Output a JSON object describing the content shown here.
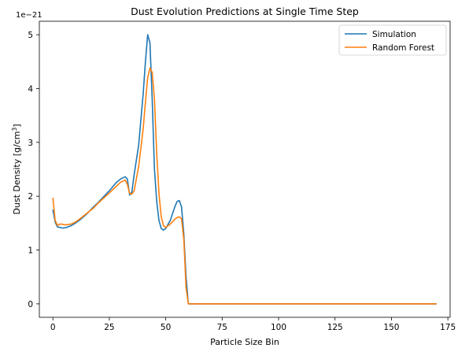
{
  "chart_data": {
    "type": "line",
    "title": "Dust Evolution Predictions at Single Time Step",
    "xlabel": "Particle Size Bin",
    "ylabel_main": "Dust Density [g/cm",
    "ylabel_sup": "3",
    "ylabel_close": "]",
    "y_multiplier": "1e−21",
    "xlim": [
      -6,
      176
    ],
    "ylim": [
      -0.25,
      5.25
    ],
    "grid": false,
    "legend_position": "top-right",
    "x_ticks": [
      0,
      25,
      50,
      75,
      100,
      125,
      150,
      175
    ],
    "x_tick_labels": [
      "0",
      "25",
      "50",
      "75",
      "100",
      "125",
      "150",
      "175"
    ],
    "y_ticks": [
      0,
      1,
      2,
      3,
      4,
      5
    ],
    "y_tick_labels": [
      "0",
      "1",
      "2",
      "3",
      "4",
      "5"
    ],
    "series": [
      {
        "name": "Simulation",
        "color": "#1f77b4",
        "x": [
          0,
          1,
          2,
          3,
          4,
          5,
          6,
          8,
          10,
          12,
          15,
          18,
          20,
          25,
          28,
          30,
          32,
          33,
          34,
          35,
          36,
          38,
          40,
          41,
          42,
          43,
          44,
          45,
          46,
          47,
          48,
          49,
          50,
          52,
          54,
          55,
          56,
          57,
          58,
          59,
          60,
          70,
          90,
          110,
          130,
          150,
          170
        ],
        "values": [
          1.75,
          1.52,
          1.43,
          1.42,
          1.41,
          1.41,
          1.42,
          1.45,
          1.5,
          1.56,
          1.67,
          1.8,
          1.88,
          2.1,
          2.25,
          2.32,
          2.36,
          2.32,
          2.02,
          2.08,
          2.4,
          2.95,
          3.9,
          4.5,
          5.0,
          4.85,
          3.8,
          2.5,
          1.9,
          1.55,
          1.4,
          1.37,
          1.4,
          1.55,
          1.8,
          1.9,
          1.92,
          1.8,
          1.3,
          0.5,
          0.0,
          0.0,
          0.0,
          0.0,
          0.0,
          0.0,
          0.0
        ]
      },
      {
        "name": "Random Forest",
        "color": "#ff7f0e",
        "x": [
          0,
          1,
          2,
          3,
          4,
          5,
          6,
          8,
          10,
          12,
          15,
          18,
          20,
          25,
          28,
          30,
          32,
          33,
          34,
          35,
          36,
          38,
          40,
          41,
          42,
          43,
          44,
          45,
          46,
          47,
          48,
          49,
          50,
          52,
          54,
          55,
          56,
          57,
          58,
          59,
          60,
          70,
          90,
          110,
          130,
          150,
          170
        ],
        "values": [
          1.97,
          1.55,
          1.46,
          1.48,
          1.48,
          1.47,
          1.47,
          1.48,
          1.52,
          1.58,
          1.68,
          1.78,
          1.87,
          2.06,
          2.18,
          2.26,
          2.3,
          2.22,
          2.05,
          2.04,
          2.1,
          2.55,
          3.25,
          3.75,
          4.2,
          4.38,
          4.3,
          3.8,
          2.8,
          2.05,
          1.62,
          1.45,
          1.42,
          1.48,
          1.57,
          1.6,
          1.62,
          1.58,
          1.2,
          0.3,
          0.0,
          0.0,
          0.0,
          0.0,
          0.0,
          0.0,
          0.0
        ]
      }
    ]
  }
}
